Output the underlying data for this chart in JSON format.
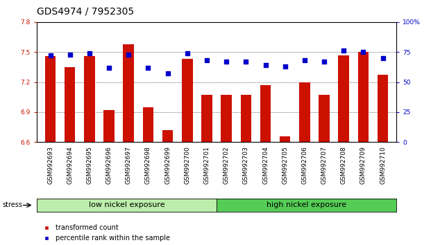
{
  "title": "GDS4974 / 7952305",
  "samples": [
    "GSM992693",
    "GSM992694",
    "GSM992695",
    "GSM992696",
    "GSM992697",
    "GSM992698",
    "GSM992699",
    "GSM992700",
    "GSM992701",
    "GSM992702",
    "GSM992703",
    "GSM992704",
    "GSM992705",
    "GSM992706",
    "GSM992707",
    "GSM992708",
    "GSM992709",
    "GSM992710"
  ],
  "transformed_count": [
    7.46,
    7.35,
    7.46,
    6.92,
    7.58,
    6.95,
    6.72,
    7.43,
    7.07,
    7.07,
    7.07,
    7.17,
    6.66,
    7.2,
    7.07,
    7.47,
    7.5,
    7.27
  ],
  "percentile_rank": [
    72,
    73,
    74,
    62,
    73,
    62,
    57,
    74,
    68,
    67,
    67,
    64,
    63,
    68,
    67,
    76,
    75,
    70
  ],
  "bar_color": "#cc1100",
  "dot_color": "#0000cc",
  "left_ylim": [
    6.6,
    7.8
  ],
  "right_ylim": [
    0,
    100
  ],
  "left_yticks": [
    6.6,
    6.9,
    7.2,
    7.5,
    7.8
  ],
  "right_yticks": [
    0,
    25,
    50,
    75,
    100
  ],
  "right_yticklabels": [
    "0",
    "25",
    "50",
    "75",
    "100%"
  ],
  "low_group_label": "low nickel exposure",
  "high_group_label": "high nickel exposure",
  "low_group_count": 9,
  "high_group_count": 9,
  "stress_label": "stress",
  "legend_bar_label": "transformed count",
  "legend_dot_label": "percentile rank within the sample",
  "bg_color_low": "#bbeeaa",
  "bg_color_high": "#55cc55",
  "bar_width": 0.55,
  "title_fontsize": 10,
  "tick_fontsize": 6.5,
  "group_label_fontsize": 8
}
